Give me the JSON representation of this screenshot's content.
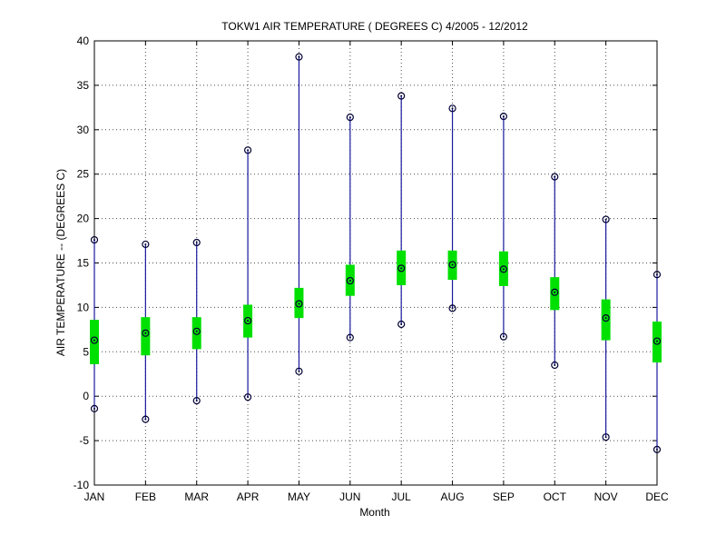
{
  "chart_data": {
    "type": "box",
    "title": "TOKW1  AIR TEMPERATURE ( DEGREES C) 4/2005 - 12/2012",
    "xlabel": "Month",
    "ylabel": "AIR TEMPERATURE -- (DEGREES C)",
    "ylim": [
      -10,
      40
    ],
    "yticks": [
      -10,
      -5,
      0,
      5,
      10,
      15,
      20,
      25,
      30,
      35,
      40
    ],
    "grid": true,
    "categories": [
      "JAN",
      "FEB",
      "MAR",
      "APR",
      "MAY",
      "JUN",
      "JUL",
      "AUG",
      "SEP",
      "OCT",
      "NOV",
      "DEC"
    ],
    "min": [
      -1.4,
      -2.6,
      -0.5,
      -0.1,
      2.8,
      6.6,
      8.1,
      9.9,
      6.7,
      3.5,
      -4.6,
      -6.0
    ],
    "max": [
      17.6,
      17.1,
      17.3,
      27.7,
      38.2,
      31.4,
      33.8,
      32.4,
      31.5,
      24.7,
      19.9,
      13.7
    ],
    "q1": [
      3.6,
      4.6,
      5.3,
      6.6,
      8.8,
      11.3,
      12.5,
      13.1,
      12.4,
      9.7,
      6.3,
      3.8
    ],
    "q3": [
      8.6,
      8.9,
      8.9,
      10.3,
      12.2,
      14.8,
      16.4,
      16.4,
      16.3,
      13.4,
      10.9,
      8.4
    ],
    "mean": [
      6.3,
      7.1,
      7.3,
      8.5,
      10.4,
      13.0,
      14.4,
      14.8,
      14.3,
      11.7,
      8.8,
      6.2
    ],
    "colors": {
      "whisker": "#1a1a9e",
      "box": "#00e000",
      "marker": "#000033",
      "grid": "#000000"
    }
  }
}
